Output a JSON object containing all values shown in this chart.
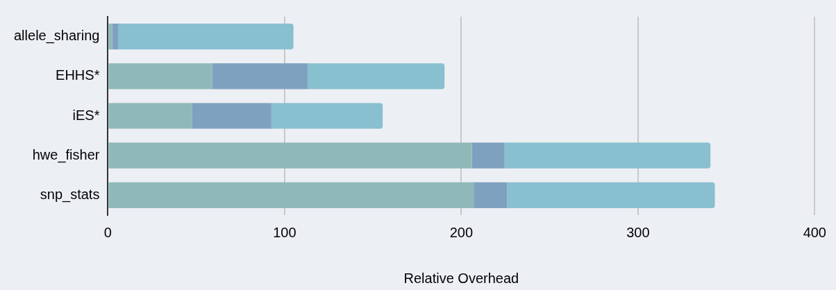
{
  "chart_data": {
    "type": "bar",
    "orientation": "horizontal",
    "stacked": true,
    "xlabel": "Relative Overhead",
    "categories": [
      "allele_sharing",
      "EHHS*",
      "iES*",
      "hwe_fisher",
      "snp_stats"
    ],
    "series": [
      {
        "color": "#8fb9b8",
        "values": [
          2.5,
          59,
          47.5,
          206,
          207
        ]
      },
      {
        "color": "#7fa1c0",
        "values": [
          3.5,
          54,
          45,
          18.5,
          19
        ]
      },
      {
        "color": "#88c0cf",
        "values": [
          99,
          77.5,
          63,
          116.5,
          117.5
        ]
      }
    ],
    "xlim": [
      0,
      400
    ],
    "xticks": [
      0,
      100,
      200,
      300,
      400
    ],
    "grid": "x",
    "legend": false
  }
}
